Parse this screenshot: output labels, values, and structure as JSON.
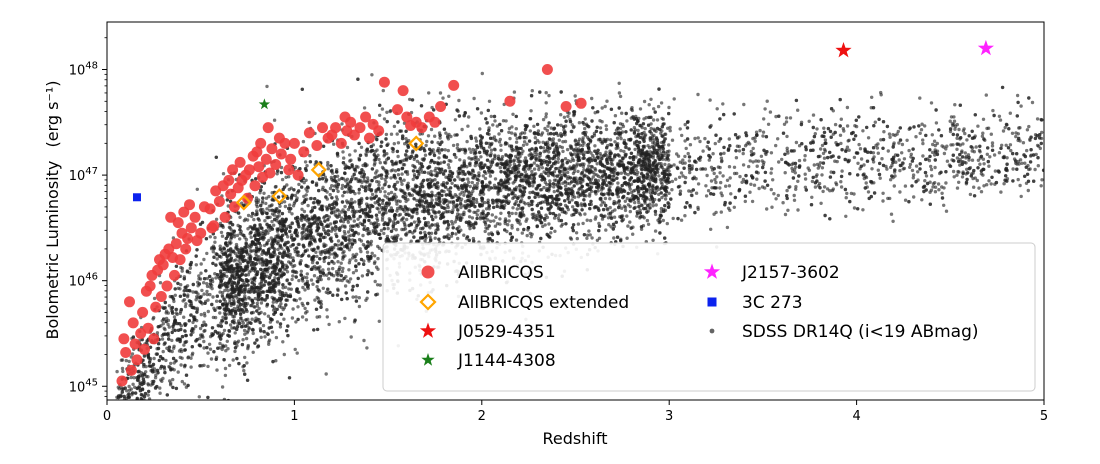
{
  "chart_data": {
    "type": "scatter",
    "title": "",
    "xlabel": "Redshift",
    "ylabel": "Bolometric Luminosity",
    "ylabel_unit": "(erg s⁻¹)",
    "xlim": [
      0,
      5
    ],
    "ylim_log10": [
      44.87,
      48.45
    ],
    "yscale": "log",
    "x_ticks": [
      0,
      1,
      2,
      3,
      4,
      5
    ],
    "x_tick_labels": [
      "0",
      "1",
      "2",
      "3",
      "4",
      "5"
    ],
    "y_ticks_log10": [
      45,
      46,
      47,
      48
    ],
    "y_tick_base": "10",
    "y_tick_exponents": [
      "45",
      "46",
      "47",
      "48"
    ],
    "legend_location": "lower-right",
    "legend": [
      {
        "label": "AllBRICQS",
        "marker": "circle",
        "color": "#f03c3c"
      },
      {
        "label": "AllBRICQS extended",
        "marker": "diamond-open",
        "color": "#ffa500"
      },
      {
        "label": "J0529-4351",
        "marker": "star",
        "color": "#ee1111"
      },
      {
        "label": "J1144-4308",
        "marker": "star",
        "color": "#1a7f1a"
      },
      {
        "label": "J2157-3602",
        "marker": "star",
        "color": "#ff22ff"
      },
      {
        "label": "3C 273",
        "marker": "square",
        "color": "#0b22ee"
      },
      {
        "label": "SDSS DR14Q (i<19 ABmag)",
        "marker": "dot",
        "color": "#222222"
      }
    ],
    "series": [
      {
        "name": "AllBRICQS",
        "points": [
          [
            0.08,
            45.05
          ],
          [
            0.09,
            45.45
          ],
          [
            0.1,
            45.32
          ],
          [
            0.12,
            45.8
          ],
          [
            0.13,
            45.15
          ],
          [
            0.14,
            45.6
          ],
          [
            0.15,
            45.4
          ],
          [
            0.16,
            45.25
          ],
          [
            0.18,
            45.5
          ],
          [
            0.19,
            45.7
          ],
          [
            0.2,
            45.35
          ],
          [
            0.21,
            45.9
          ],
          [
            0.22,
            45.55
          ],
          [
            0.23,
            45.95
          ],
          [
            0.24,
            46.05
          ],
          [
            0.25,
            45.45
          ],
          [
            0.26,
            45.75
          ],
          [
            0.27,
            46.1
          ],
          [
            0.28,
            46.2
          ],
          [
            0.29,
            45.85
          ],
          [
            0.3,
            46.15
          ],
          [
            0.31,
            46.25
          ],
          [
            0.32,
            45.95
          ],
          [
            0.33,
            46.3
          ],
          [
            0.35,
            46.22
          ],
          [
            0.36,
            46.05
          ],
          [
            0.37,
            46.35
          ],
          [
            0.38,
            46.55
          ],
          [
            0.39,
            46.2
          ],
          [
            0.4,
            46.45
          ],
          [
            0.41,
            46.65
          ],
          [
            0.42,
            46.3
          ],
          [
            0.43,
            46.4
          ],
          [
            0.45,
            46.5
          ],
          [
            0.47,
            46.6
          ],
          [
            0.5,
            46.45
          ],
          [
            0.52,
            46.7
          ],
          [
            0.55,
            46.68
          ],
          [
            0.56,
            46.5
          ],
          [
            0.58,
            46.85
          ],
          [
            0.6,
            46.75
          ],
          [
            0.62,
            46.9
          ],
          [
            0.63,
            46.6
          ],
          [
            0.65,
            46.95
          ],
          [
            0.66,
            46.82
          ],
          [
            0.67,
            47.05
          ],
          [
            0.68,
            46.7
          ],
          [
            0.7,
            46.88
          ],
          [
            0.71,
            47.12
          ],
          [
            0.72,
            46.95
          ],
          [
            0.74,
            47.0
          ],
          [
            0.75,
            46.78
          ],
          [
            0.76,
            47.05
          ],
          [
            0.78,
            47.18
          ],
          [
            0.79,
            46.9
          ],
          [
            0.8,
            47.22
          ],
          [
            0.81,
            47.08
          ],
          [
            0.82,
            47.3
          ],
          [
            0.83,
            46.98
          ],
          [
            0.85,
            47.15
          ],
          [
            0.86,
            47.45
          ],
          [
            0.87,
            47.02
          ],
          [
            0.88,
            47.25
          ],
          [
            0.9,
            47.1
          ],
          [
            0.92,
            47.35
          ],
          [
            0.93,
            47.2
          ],
          [
            0.95,
            47.3
          ],
          [
            0.97,
            47.05
          ],
          [
            0.98,
            47.15
          ],
          [
            1.0,
            47.3
          ],
          [
            1.02,
            47.0
          ],
          [
            1.05,
            47.22
          ],
          [
            1.08,
            47.4
          ],
          [
            1.12,
            47.28
          ],
          [
            1.15,
            47.45
          ],
          [
            1.18,
            47.35
          ],
          [
            1.2,
            47.38
          ],
          [
            1.22,
            47.45
          ],
          [
            1.25,
            47.3
          ],
          [
            1.28,
            47.42
          ],
          [
            1.3,
            47.5
          ],
          [
            1.32,
            47.38
          ],
          [
            1.35,
            47.45
          ],
          [
            1.38,
            47.55
          ],
          [
            1.4,
            47.35
          ],
          [
            1.42,
            47.48
          ],
          [
            1.48,
            47.88
          ],
          [
            1.6,
            47.55
          ],
          [
            1.62,
            47.47
          ],
          [
            1.65,
            47.5
          ],
          [
            1.68,
            47.45
          ],
          [
            1.72,
            47.55
          ],
          [
            1.75,
            47.5
          ],
          [
            1.78,
            47.65
          ],
          [
            1.85,
            47.85
          ],
          [
            2.15,
            47.7
          ],
          [
            2.35,
            48.0
          ],
          [
            2.45,
            47.65
          ],
          [
            2.53,
            47.68
          ],
          [
            1.58,
            47.8
          ],
          [
            1.55,
            47.62
          ],
          [
            1.45,
            47.42
          ],
          [
            1.27,
            47.55
          ],
          [
            0.57,
            46.52
          ],
          [
            0.48,
            46.38
          ],
          [
            0.34,
            46.6
          ],
          [
            0.44,
            46.72
          ]
        ]
      },
      {
        "name": "AllBRICQS extended",
        "points": [
          [
            1.13,
            47.05
          ],
          [
            1.65,
            47.3
          ],
          [
            0.92,
            46.8
          ],
          [
            0.73,
            46.74
          ]
        ]
      },
      {
        "name": "J0529-4351",
        "points": [
          [
            3.93,
            48.18
          ]
        ]
      },
      {
        "name": "J1144-4308",
        "points": [
          [
            0.84,
            47.67
          ]
        ]
      },
      {
        "name": "J2157-3602",
        "points": [
          [
            4.69,
            48.2
          ]
        ]
      },
      {
        "name": "3C 273",
        "points": [
          [
            0.16,
            46.79
          ]
        ]
      },
      {
        "name": "SDSS DR14Q (i<19 ABmag)",
        "note": "dense cloud of ~30000 quasars; rendered procedurally from the density trend below",
        "density_trend_z": [
          0.1,
          0.3,
          0.5,
          1.0,
          1.5,
          2.0,
          2.5,
          3.0,
          3.5,
          4.0,
          4.5,
          5.0
        ],
        "density_trend_logL_center": [
          44.9,
          45.4,
          45.8,
          46.35,
          46.7,
          46.9,
          47.0,
          47.05,
          47.1,
          47.15,
          47.2,
          47.25
        ],
        "density_trend_logL_spread": [
          0.2,
          0.3,
          0.35,
          0.4,
          0.4,
          0.35,
          0.3,
          0.28,
          0.25,
          0.22,
          0.22,
          0.22
        ]
      }
    ]
  }
}
